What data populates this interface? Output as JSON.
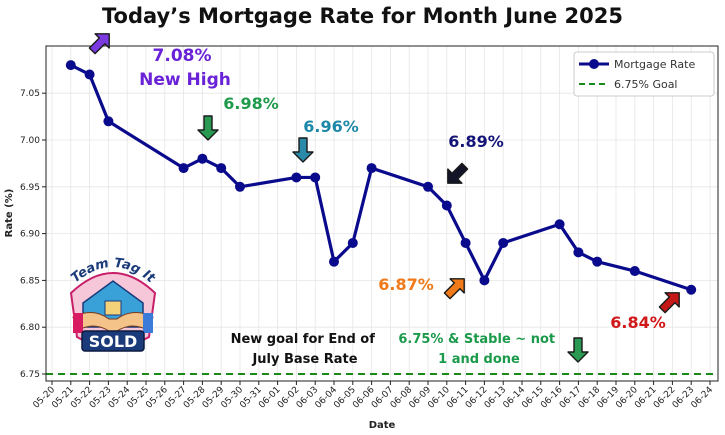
{
  "chart_data": {
    "type": "line",
    "title": "Today’s Mortgage Rate for Month June 2025",
    "xlabel": "Date",
    "ylabel": "Rate (%)",
    "ylim": [
      6.75,
      7.1
    ],
    "grid": true,
    "legend_placement": "top-right",
    "x_ticks": [
      "05-20",
      "05-21",
      "05-22",
      "05-23",
      "05-24",
      "05-25",
      "05-26",
      "05-27",
      "05-28",
      "05-29",
      "05-30",
      "05-31",
      "06-01",
      "06-02",
      "06-03",
      "06-04",
      "06-05",
      "06-06",
      "06-07",
      "06-08",
      "06-09",
      "06-10",
      "06-11",
      "06-12",
      "06-13",
      "06-14",
      "06-15",
      "06-16",
      "06-17",
      "06-18",
      "06-19",
      "06-20",
      "06-21",
      "06-22",
      "06-23",
      "06-24"
    ],
    "y_ticks": [
      "6.75",
      "6.80",
      "6.85",
      "6.90",
      "6.95",
      "7.00",
      "7.05"
    ],
    "series": [
      {
        "name": "Mortgage Rate",
        "color": "#0a0a8c",
        "style": "line-markers",
        "points": [
          {
            "x": "05-21",
            "y": 7.08
          },
          {
            "x": "05-22",
            "y": 7.07
          },
          {
            "x": "05-23",
            "y": 7.02
          },
          {
            "x": "05-27",
            "y": 6.97
          },
          {
            "x": "05-28",
            "y": 6.98
          },
          {
            "x": "05-29",
            "y": 6.97
          },
          {
            "x": "05-30",
            "y": 6.95
          },
          {
            "x": "06-02",
            "y": 6.96
          },
          {
            "x": "06-03",
            "y": 6.96
          },
          {
            "x": "06-04",
            "y": 6.87
          },
          {
            "x": "06-05",
            "y": 6.89
          },
          {
            "x": "06-06",
            "y": 6.97
          },
          {
            "x": "06-09",
            "y": 6.95
          },
          {
            "x": "06-10",
            "y": 6.93
          },
          {
            "x": "06-11",
            "y": 6.89
          },
          {
            "x": "06-12",
            "y": 6.85
          },
          {
            "x": "06-13",
            "y": 6.89
          },
          {
            "x": "06-16",
            "y": 6.91
          },
          {
            "x": "06-17",
            "y": 6.88
          },
          {
            "x": "06-18",
            "y": 6.87
          },
          {
            "x": "06-20",
            "y": 6.86
          },
          {
            "x": "06-23",
            "y": 6.84
          }
        ]
      },
      {
        "name": "6.75% Goal",
        "color": "#1a8a1a",
        "style": "dashed-horizontal",
        "y": 6.75
      }
    ],
    "annotations": [
      {
        "name": "high",
        "lines": [
          "7.08%",
          "New High"
        ],
        "color": "#6a22d8",
        "size": 17
      },
      {
        "name": "698",
        "lines": [
          "6.98%"
        ],
        "color": "#1e9a4a",
        "size": 16
      },
      {
        "name": "696",
        "lines": [
          "6.96%"
        ],
        "color": "#1e88a8",
        "size": 16
      },
      {
        "name": "689",
        "lines": [
          "6.89%"
        ],
        "color": "#141478",
        "size": 16
      },
      {
        "name": "687",
        "lines": [
          "6.87%"
        ],
        "color": "#f07a1a",
        "size": 16
      },
      {
        "name": "684",
        "lines": [
          "6.84%"
        ],
        "color": "#d01818",
        "size": 16
      },
      {
        "name": "goal-end-july",
        "lines": [
          "New goal for End of",
          "July Base Rate"
        ],
        "color": "#111111",
        "size": 13
      },
      {
        "name": "stable",
        "lines": [
          "6.75% & Stable ~ not",
          "1 and done"
        ],
        "color": "#1a9a4a",
        "size": 13
      }
    ],
    "arrows": [
      {
        "name": "high-arrow",
        "direction": "up-right",
        "color": "#7a3ae0"
      },
      {
        "name": "698-arrow",
        "direction": "down",
        "color": "#2a9a52"
      },
      {
        "name": "696-arrow",
        "direction": "down",
        "color": "#2a8aa8"
      },
      {
        "name": "689-arrow",
        "direction": "down-left",
        "color": "#141428"
      },
      {
        "name": "687-arrow",
        "direction": "up-right",
        "color": "#f07a1a"
      },
      {
        "name": "684-arrow",
        "direction": "up-right",
        "color": "#c41818"
      },
      {
        "name": "stable-arrow",
        "direction": "down",
        "color": "#2a9a52"
      }
    ]
  },
  "logo": {
    "arc_text": "Team Tag It",
    "badge_text": "SOLD"
  }
}
